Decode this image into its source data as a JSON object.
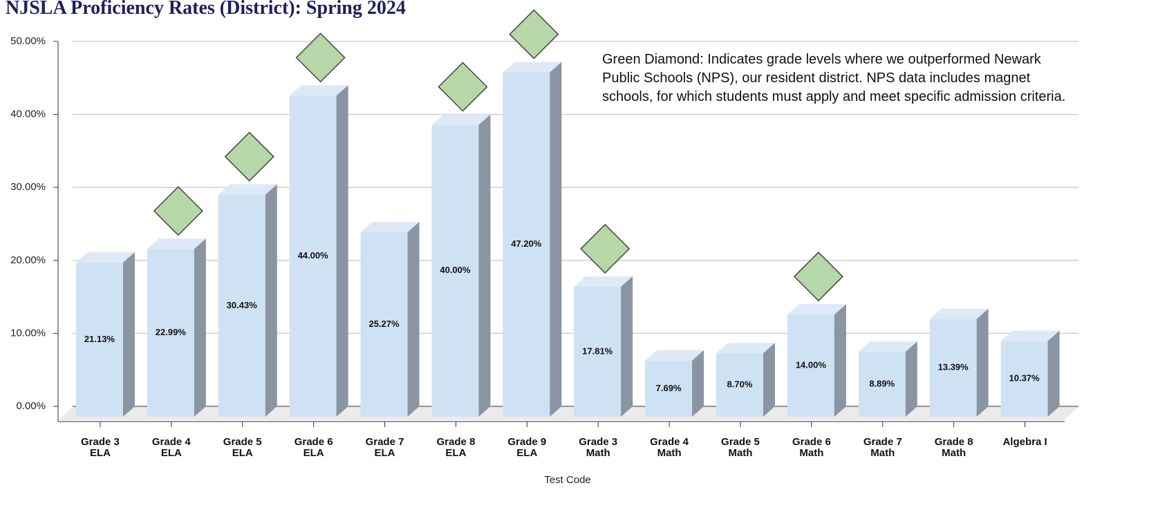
{
  "chart_data": {
    "type": "bar3d",
    "title": "NJSLA Proficiency Rates (District): Spring 2024",
    "x_label": "Test Code",
    "annotation": [
      "Green Diamond: Indicates grade levels where we outperformed Newark",
      "Public Schools (NPS), our resident district. NPS data includes magnet",
      "schools, for which students must apply and meet specific admission criteria."
    ],
    "categories": [
      "Grade 3 ELA",
      "Grade 4 ELA",
      "Grade 5 ELA",
      "Grade 6 ELA",
      "Grade 7 ELA",
      "Grade 8 ELA",
      "Grade 9 ELA",
      "Grade 3 Math",
      "Grade 4 Math",
      "Grade 5 Math",
      "Grade 6 Math",
      "Grade 7 Math",
      "Grade 8 Math",
      "Algebra I"
    ],
    "values": [
      21.13,
      22.99,
      30.43,
      44.0,
      25.27,
      40.0,
      47.2,
      17.81,
      7.69,
      8.7,
      14.0,
      8.89,
      13.39,
      10.37
    ],
    "value_labels": [
      "21.13%",
      "22.99%",
      "30.43%",
      "44.00%",
      "25.27%",
      "40.00%",
      "47.20%",
      "17.81%",
      "7.69%",
      "8.70%",
      "14.00%",
      "8.89%",
      "13.39%",
      "10.37%"
    ],
    "outperformed": [
      false,
      true,
      true,
      true,
      false,
      true,
      true,
      true,
      false,
      false,
      true,
      false,
      false,
      false
    ],
    "color": "#cfe2f3",
    "marker_color": "#b6d7a8",
    "ylim": [
      0,
      50
    ],
    "yticks": [
      {
        "value": 0,
        "label": "0.00%"
      },
      {
        "value": 10,
        "label": "10.00%"
      },
      {
        "value": 20,
        "label": "20.00%"
      },
      {
        "value": 30,
        "label": "30.00%"
      },
      {
        "value": 40,
        "label": "40.00%"
      },
      {
        "value": 50,
        "label": "50.00%"
      }
    ],
    "grid": true
  }
}
